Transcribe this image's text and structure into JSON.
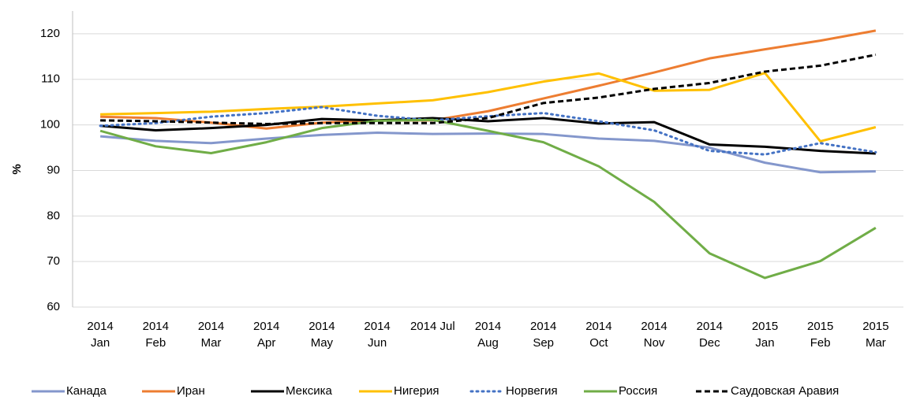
{
  "chart_data": {
    "type": "line",
    "y_label": "%",
    "categories": [
      "2014 Jan",
      "2014 Feb",
      "2014 Mar",
      "2014 Apr",
      "2014 May",
      "2014 Jun",
      "2014 Jul",
      "2014 Aug",
      "2014 Sep",
      "2014 Oct",
      "2014 Nov",
      "2014 Dec",
      "2015 Jan",
      "2015 Feb",
      "2015 Mar"
    ],
    "ylim": [
      60,
      125
    ],
    "yticks": [
      60,
      70,
      80,
      90,
      100,
      110,
      120
    ],
    "grid": true,
    "legend": "bottom",
    "series": [
      {
        "name": "Канада",
        "color": "#8497cc",
        "dash": "solid",
        "values": [
          97.5,
          96.5,
          96,
          97,
          97.8,
          98.3,
          98,
          98.1,
          98,
          97,
          96.5,
          95,
          91.7,
          89.6,
          89.8
        ]
      },
      {
        "name": "Иран",
        "color": "#ed7d31",
        "dash": "solid",
        "values": [
          101.8,
          101.5,
          100.5,
          99.2,
          100.5,
          101,
          101,
          103,
          105.8,
          108.6,
          111.5,
          114.6,
          116.6,
          118.5,
          120.7
        ]
      },
      {
        "name": "Мексика",
        "color": "#000000",
        "dash": "solid",
        "values": [
          99.8,
          98.8,
          99.3,
          100,
          101.3,
          101,
          101.5,
          100.8,
          101.5,
          100.3,
          100.6,
          95.7,
          95.2,
          94.3,
          93.7
        ]
      },
      {
        "name": "Нигерия",
        "color": "#ffc000",
        "dash": "solid",
        "values": [
          102.3,
          102.6,
          102.9,
          103.5,
          104,
          104.7,
          105.4,
          107.2,
          109.5,
          111.3,
          107.5,
          107.7,
          111.4,
          96.4,
          99.5
        ]
      },
      {
        "name": "Норвегия",
        "color": "#4472c4",
        "dash": "dot",
        "values": [
          99.8,
          100.4,
          101.8,
          102.6,
          103.9,
          102,
          101,
          101.9,
          102.6,
          100.8,
          98.8,
          94.3,
          93.5,
          96,
          94
        ]
      },
      {
        "name": "Россия",
        "color": "#70ad47",
        "dash": "solid",
        "values": [
          98.7,
          95.3,
          93.8,
          96.2,
          99.3,
          100.9,
          101.1,
          98.7,
          96.2,
          90.9,
          83.1,
          71.8,
          66.4,
          70.1,
          77.4
        ]
      },
      {
        "name": "Саудовская Аравия",
        "color": "#000000",
        "dash": "dash",
        "values": [
          101,
          100.8,
          100.5,
          100.2,
          100.4,
          100.4,
          100.4,
          101.5,
          104.8,
          106,
          107.9,
          109.2,
          111.7,
          113,
          115.4
        ]
      }
    ]
  }
}
